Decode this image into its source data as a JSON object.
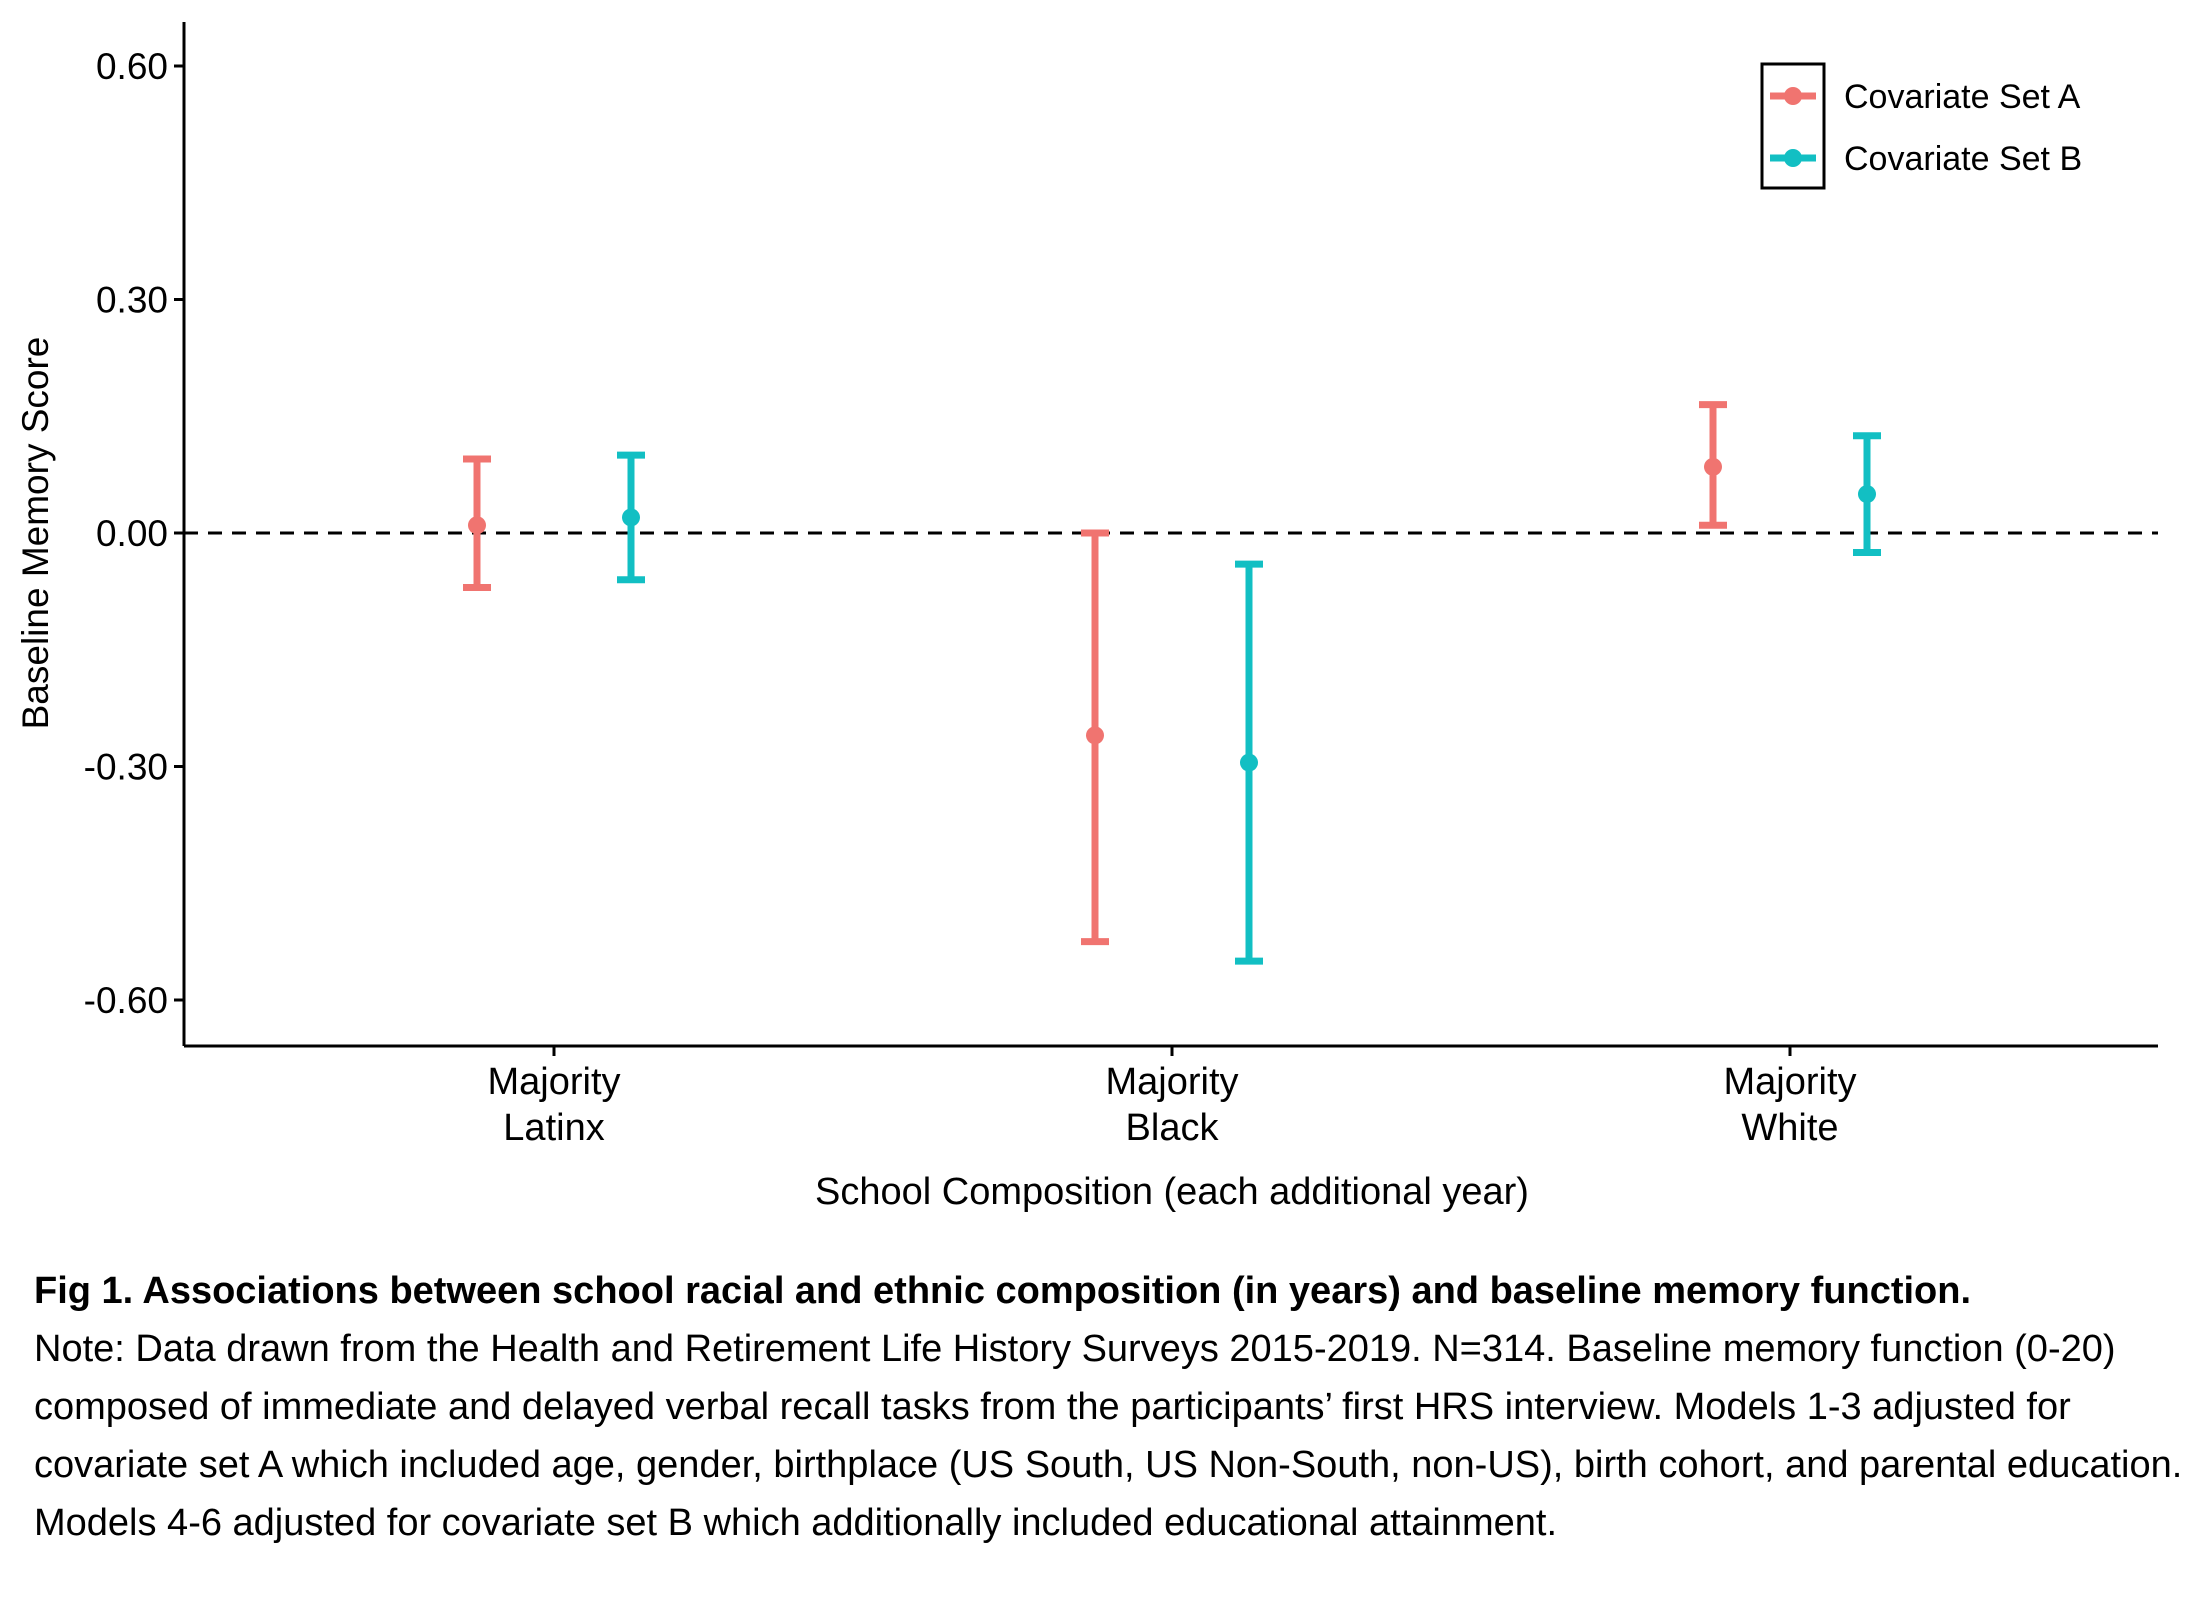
{
  "chart_data": {
    "type": "errorbar",
    "xlabel": "School Composition (each additional year)",
    "ylabel": "Baseline Memory Score",
    "ylim": [
      -0.66,
      0.66
    ],
    "yticks": [
      0.6,
      0.3,
      0.0,
      -0.3,
      -0.6
    ],
    "ytick_labels": [
      "0.60",
      "0.30",
      "0.00",
      "-0.30",
      "-0.60"
    ],
    "categories": [
      {
        "line1": "Majority",
        "line2": "Latinx"
      },
      {
        "line1": "Majority",
        "line2": "Black"
      },
      {
        "line1": "Majority",
        "line2": "White"
      }
    ],
    "reference_line": 0.0,
    "grid": false,
    "legend_position": "top-right",
    "series": [
      {
        "name": "Covariate Set A",
        "color": "#F07470",
        "estimate": [
          0.01,
          -0.26,
          0.085
        ],
        "lower": [
          -0.07,
          -0.525,
          0.01
        ],
        "upper": [
          0.095,
          0.0,
          0.165
        ]
      },
      {
        "name": "Covariate Set B",
        "color": "#12BFC3",
        "estimate": [
          0.02,
          -0.295,
          0.05
        ],
        "lower": [
          -0.06,
          -0.55,
          -0.025
        ],
        "upper": [
          0.1,
          -0.04,
          0.125
        ]
      }
    ]
  },
  "caption": {
    "title": "Fig 1. Associations between school racial and ethnic composition (in years) and baseline memory function.",
    "note": "Note: Data drawn from the Health and Retirement Life History Surveys 2015-2019. N=314. Baseline memory function (0-20) composed of immediate and delayed verbal recall tasks from the participants’ first HRS interview. Models 1-3 adjusted for covariate set A which included age, gender, birthplace (US South, US Non-South, non-US), birth cohort, and parental education. Models 4-6 adjusted for covariate set B which additionally included educational attainment."
  }
}
